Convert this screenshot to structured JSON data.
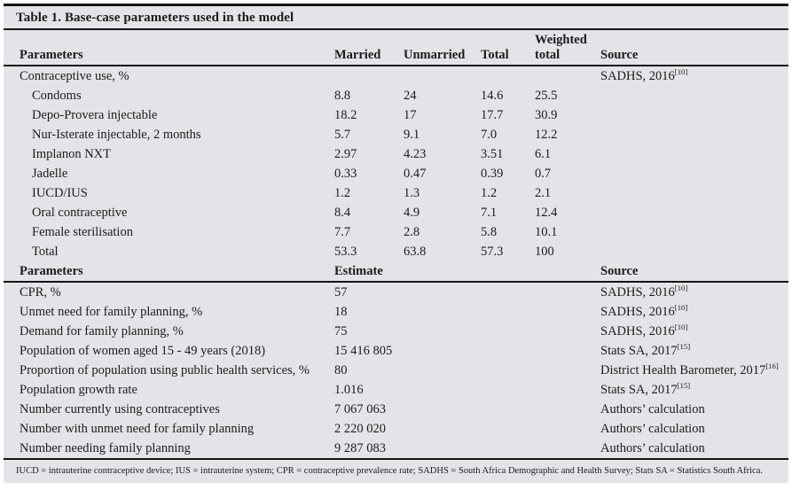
{
  "title": "Table 1. Base-case parameters used in the model",
  "colors": {
    "background": "#e3e4e8",
    "rule": "#141414",
    "text": "#1b1b1b"
  },
  "table1": {
    "headers": {
      "parameters": "Parameters",
      "married": "Married",
      "unmarried": "Unmarried",
      "total": "Total",
      "weighted_top": "Weighted",
      "weighted_bottom": "total",
      "source": "Source"
    },
    "rows": [
      {
        "label": "Contraceptive use, %",
        "indent": false,
        "married": "",
        "unmarried": "",
        "total": "",
        "weighted": "",
        "source": "SADHS, 2016",
        "ref": "[10]"
      },
      {
        "label": "Condoms",
        "indent": true,
        "married": "8.8",
        "unmarried": "24",
        "total": "14.6",
        "weighted": "25.5",
        "source": "",
        "ref": ""
      },
      {
        "label": "Depo-Provera injectable",
        "indent": true,
        "married": "18.2",
        "unmarried": "17",
        "total": "17.7",
        "weighted": "30.9",
        "source": "",
        "ref": ""
      },
      {
        "label": "Nur-Isterate injectable, 2 months",
        "indent": true,
        "married": "5.7",
        "unmarried": "9.1",
        "total": "7.0",
        "weighted": "12.2",
        "source": "",
        "ref": ""
      },
      {
        "label": "Implanon NXT",
        "indent": true,
        "married": "2.97",
        "unmarried": "4.23",
        "total": "3.51",
        "weighted": "6.1",
        "source": "",
        "ref": ""
      },
      {
        "label": "Jadelle",
        "indent": true,
        "married": "0.33",
        "unmarried": "0.47",
        "total": "0.39",
        "weighted": "0.7",
        "source": "",
        "ref": ""
      },
      {
        "label": "IUCD/IUS",
        "indent": true,
        "married": "1.2",
        "unmarried": "1.3",
        "total": "1.2",
        "weighted": "2.1",
        "source": "",
        "ref": ""
      },
      {
        "label": "Oral contraceptive",
        "indent": true,
        "married": "8.4",
        "unmarried": "4.9",
        "total": "7.1",
        "weighted": "12.4",
        "source": "",
        "ref": ""
      },
      {
        "label": "Female sterilisation",
        "indent": true,
        "married": "7.7",
        "unmarried": "2.8",
        "total": "5.8",
        "weighted": "10.1",
        "source": "",
        "ref": ""
      },
      {
        "label": "Total",
        "indent": true,
        "married": "53.3",
        "unmarried": "63.8",
        "total": "57.3",
        "weighted": "100",
        "source": "",
        "ref": ""
      }
    ]
  },
  "table2": {
    "headers": {
      "parameters": "Parameters",
      "estimate": "Estimate",
      "source": "Source"
    },
    "rows": [
      {
        "label": "CPR, %",
        "estimate": "57",
        "source": "SADHS, 2016",
        "ref": "[10]"
      },
      {
        "label": "Unmet need for family planning, %",
        "estimate": "18",
        "source": "SADHS, 2016",
        "ref": "[10]"
      },
      {
        "label": "Demand for family planning, %",
        "estimate": "75",
        "source": "SADHS, 2016",
        "ref": "[10]"
      },
      {
        "label": "Population of women aged 15 - 49 years (2018)",
        "estimate": "15 416 805",
        "source": "Stats SA, 2017",
        "ref": "[15]"
      },
      {
        "label": "Proportion of population using public health services, %",
        "estimate": "80",
        "source": "District Health Barometer, 2017",
        "ref": "[16]"
      },
      {
        "label": "Population growth rate",
        "estimate": "1.016",
        "source": "Stats SA, 2017",
        "ref": "[15]"
      },
      {
        "label": "Number currently using contraceptives",
        "estimate": "7 067 063",
        "source": "Authors’ calculation",
        "ref": ""
      },
      {
        "label": "Number with unmet need for family planning",
        "estimate": "2 220 020",
        "source": "Authors’ calculation",
        "ref": ""
      },
      {
        "label": "Number needing family planning",
        "estimate": "9 287 083",
        "source": "Authors’ calculation",
        "ref": ""
      }
    ]
  },
  "footnote": "IUCD = intrauterine contraceptive device; IUS = intrauterine system; CPR = contraceptive prevalence rate; SADHS = South Africa Demographic and Health Survey; Stats SA = Statistics South Africa."
}
